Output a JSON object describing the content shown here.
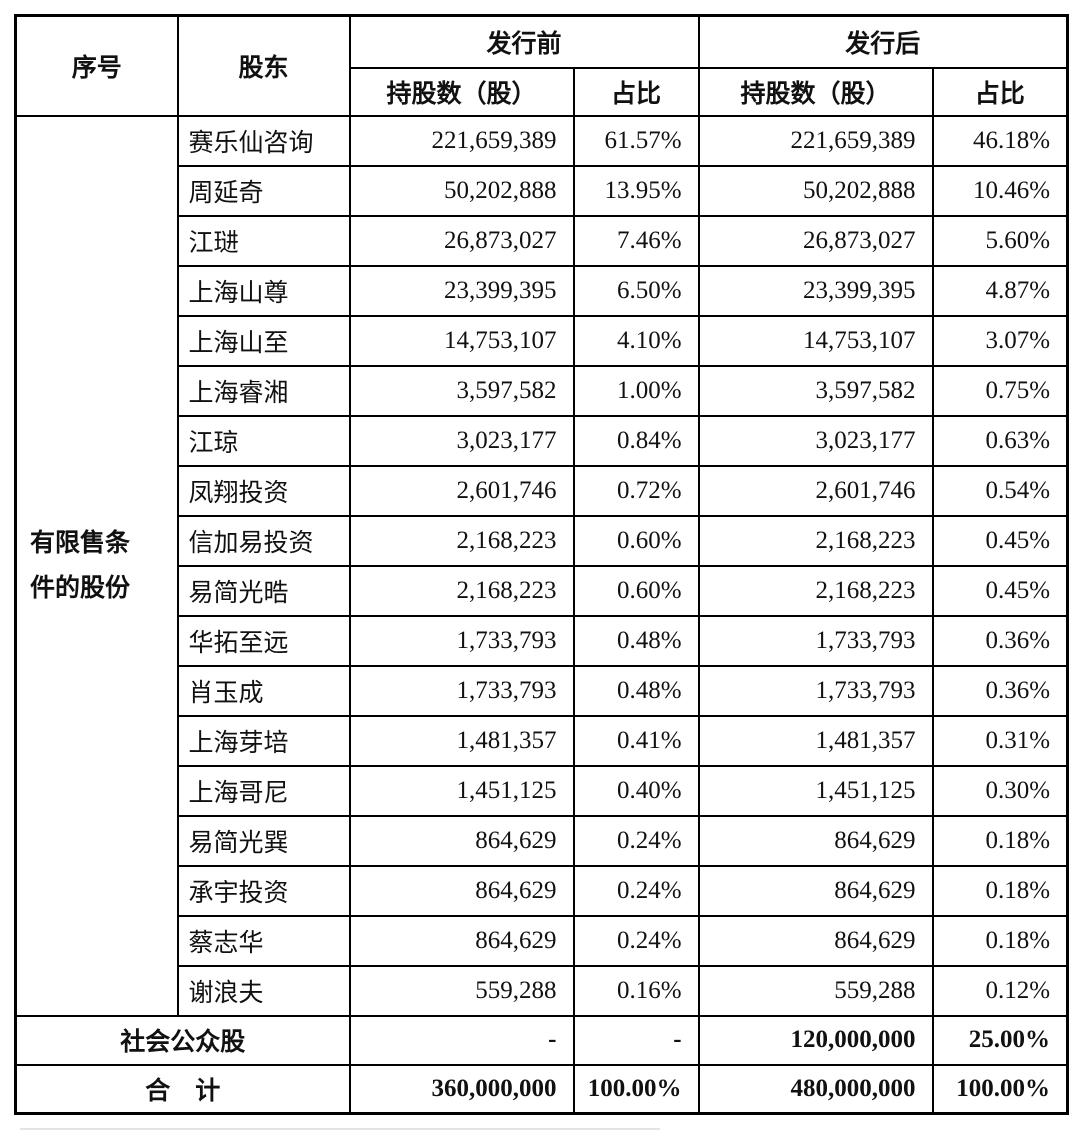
{
  "colors": {
    "border": "#000000",
    "background": "#ffffff",
    "text": "#111111"
  },
  "table": {
    "header": {
      "col_seq": "序号",
      "col_shareholder": "股东",
      "group_pre": "发行前",
      "group_post": "发行后",
      "col_shares": "持股数（股）",
      "col_ratio": "占比"
    },
    "category_label": "有限售条件的股份",
    "rows": [
      {
        "name": "赛乐仙咨询",
        "pre_shares": "221,659,389",
        "pre_ratio": "61.57%",
        "post_shares": "221,659,389",
        "post_ratio": "46.18%"
      },
      {
        "name": "周延奇",
        "pre_shares": "50,202,888",
        "pre_ratio": "13.95%",
        "post_shares": "50,202,888",
        "post_ratio": "10.46%"
      },
      {
        "name": "江琎",
        "pre_shares": "26,873,027",
        "pre_ratio": "7.46%",
        "post_shares": "26,873,027",
        "post_ratio": "5.60%"
      },
      {
        "name": "上海山尊",
        "pre_shares": "23,399,395",
        "pre_ratio": "6.50%",
        "post_shares": "23,399,395",
        "post_ratio": "4.87%"
      },
      {
        "name": "上海山至",
        "pre_shares": "14,753,107",
        "pre_ratio": "4.10%",
        "post_shares": "14,753,107",
        "post_ratio": "3.07%"
      },
      {
        "name": "上海睿湘",
        "pre_shares": "3,597,582",
        "pre_ratio": "1.00%",
        "post_shares": "3,597,582",
        "post_ratio": "0.75%"
      },
      {
        "name": "江琼",
        "pre_shares": "3,023,177",
        "pre_ratio": "0.84%",
        "post_shares": "3,023,177",
        "post_ratio": "0.63%"
      },
      {
        "name": "凤翔投资",
        "pre_shares": "2,601,746",
        "pre_ratio": "0.72%",
        "post_shares": "2,601,746",
        "post_ratio": "0.54%"
      },
      {
        "name": "信加易投资",
        "pre_shares": "2,168,223",
        "pre_ratio": "0.60%",
        "post_shares": "2,168,223",
        "post_ratio": "0.45%"
      },
      {
        "name": "易简光晧",
        "pre_shares": "2,168,223",
        "pre_ratio": "0.60%",
        "post_shares": "2,168,223",
        "post_ratio": "0.45%"
      },
      {
        "name": "华拓至远",
        "pre_shares": "1,733,793",
        "pre_ratio": "0.48%",
        "post_shares": "1,733,793",
        "post_ratio": "0.36%"
      },
      {
        "name": "肖玉成",
        "pre_shares": "1,733,793",
        "pre_ratio": "0.48%",
        "post_shares": "1,733,793",
        "post_ratio": "0.36%"
      },
      {
        "name": "上海芽培",
        "pre_shares": "1,481,357",
        "pre_ratio": "0.41%",
        "post_shares": "1,481,357",
        "post_ratio": "0.31%"
      },
      {
        "name": "上海哥尼",
        "pre_shares": "1,451,125",
        "pre_ratio": "0.40%",
        "post_shares": "1,451,125",
        "post_ratio": "0.30%"
      },
      {
        "name": "易简光巽",
        "pre_shares": "864,629",
        "pre_ratio": "0.24%",
        "post_shares": "864,629",
        "post_ratio": "0.18%"
      },
      {
        "name": "承宇投资",
        "pre_shares": "864,629",
        "pre_ratio": "0.24%",
        "post_shares": "864,629",
        "post_ratio": "0.18%"
      },
      {
        "name": "蔡志华",
        "pre_shares": "864,629",
        "pre_ratio": "0.24%",
        "post_shares": "864,629",
        "post_ratio": "0.18%"
      },
      {
        "name": "谢浪夫",
        "pre_shares": "559,288",
        "pre_ratio": "0.16%",
        "post_shares": "559,288",
        "post_ratio": "0.12%"
      }
    ],
    "public_row": {
      "label": "社会公众股",
      "pre_shares": "-",
      "pre_ratio": "-",
      "post_shares": "120,000,000",
      "post_ratio": "25.00%"
    },
    "total_row": {
      "label": "合　计",
      "pre_shares": "360,000,000",
      "pre_ratio": "100.00%",
      "post_shares": "480,000,000",
      "post_ratio": "100.00%"
    }
  }
}
